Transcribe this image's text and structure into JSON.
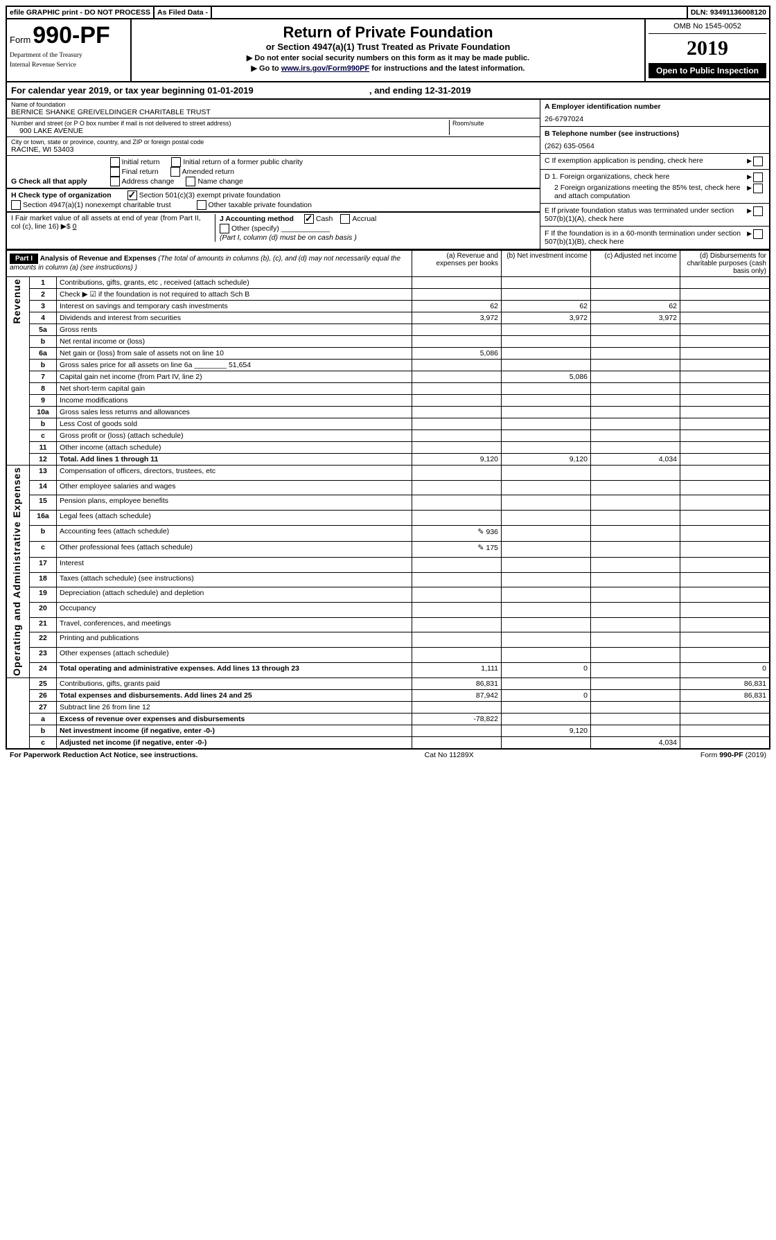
{
  "topbar": {
    "efile": "efile GRAPHIC print - DO NOT PROCESS",
    "asfiled": "As Filed Data -",
    "dln": "DLN: 93491136008120"
  },
  "header": {
    "form_prefix": "Form",
    "form_number": "990-PF",
    "dept1": "Department of the Treasury",
    "dept2": "Internal Revenue Service",
    "title": "Return of Private Foundation",
    "subtitle": "or Section 4947(a)(1) Trust Treated as Private Foundation",
    "instr1": "▶ Do not enter social security numbers on this form as it may be made public.",
    "instr2_pre": "▶ Go to ",
    "instr2_link": "www.irs.gov/Form990PF",
    "instr2_post": " for instructions and the latest information.",
    "omb": "OMB No 1545-0052",
    "year": "2019",
    "open": "Open to Public Inspection"
  },
  "calendar": {
    "text_pre": "For calendar year 2019, or tax year beginning ",
    "begin": "01-01-2019",
    "mid": ", and ending ",
    "end": "12-31-2019"
  },
  "info": {
    "name_label": "Name of foundation",
    "name": "BERNICE SHANKE GREIVELDINGER CHARITABLE TRUST",
    "addr_label": "Number and street (or P O  box number if mail is not delivered to street address)",
    "addr": "900 LAKE AVENUE",
    "room_label": "Room/suite",
    "city_label": "City or town, state or province, country, and ZIP or foreign postal code",
    "city": "RACINE, WI  53403",
    "A_label": "A Employer identification number",
    "A_value": "26-6797024",
    "B_label": "B Telephone number (see instructions)",
    "B_value": "(262) 635-0564",
    "C_label": "C If exemption application is pending, check here",
    "D1_label": "D 1. Foreign organizations, check here",
    "D2_label": "2 Foreign organizations meeting the 85% test, check here and attach computation",
    "E_label": "E  If private foundation status was terminated under section 507(b)(1)(A), check here",
    "F_label": "F  If the foundation is in a 60-month termination under section 507(b)(1)(B), check here"
  },
  "G": {
    "label": "G Check all that apply",
    "opts": [
      "Initial return",
      "Initial return of a former public charity",
      "Final return",
      "Amended return",
      "Address change",
      "Name change"
    ]
  },
  "H": {
    "label": "H Check type of organization",
    "opt1": "Section 501(c)(3) exempt private foundation",
    "opt2": "Section 4947(a)(1) nonexempt charitable trust",
    "opt3": "Other taxable private foundation"
  },
  "I": {
    "label": "I Fair market value of all assets at end of year (from Part II, col  (c), line 16) ▶$",
    "value": "0"
  },
  "J": {
    "label": "J Accounting method",
    "cash": "Cash",
    "accrual": "Accrual",
    "other": "Other (specify)",
    "note": "(Part I, column (d) must be on cash basis )"
  },
  "part1": {
    "title": "Analysis of Revenue and Expenses",
    "title_note": "(The total of amounts in columns (b), (c), and (d) may not necessarily equal the amounts in column (a) (see instructions) )",
    "col_a": "(a) Revenue and expenses per books",
    "col_b": "(b) Net investment income",
    "col_c": "(c) Adjusted net income",
    "col_d": "(d) Disbursements for charitable purposes (cash basis only)",
    "revenue_label": "Revenue",
    "expenses_label": "Operating and Administrative Expenses",
    "rows": [
      {
        "n": "1",
        "d": "Contributions, gifts, grants, etc , received (attach schedule)"
      },
      {
        "n": "2",
        "d": "Check ▶ ☑ if the foundation is not required to attach Sch  B"
      },
      {
        "n": "3",
        "d": "Interest on savings and temporary cash investments",
        "a": "62",
        "b": "62",
        "c": "62"
      },
      {
        "n": "4",
        "d": "Dividends and interest from securities",
        "a": "3,972",
        "b": "3,972",
        "c": "3,972"
      },
      {
        "n": "5a",
        "d": "Gross rents"
      },
      {
        "n": "b",
        "d": "Net rental income or (loss)"
      },
      {
        "n": "6a",
        "d": "Net gain or (loss) from sale of assets not on line 10",
        "a": "5,086"
      },
      {
        "n": "b",
        "d": "Gross sales price for all assets on line 6a ________ 51,654"
      },
      {
        "n": "7",
        "d": "Capital gain net income (from Part IV, line 2)",
        "b": "5,086"
      },
      {
        "n": "8",
        "d": "Net short-term capital gain"
      },
      {
        "n": "9",
        "d": "Income modifications"
      },
      {
        "n": "10a",
        "d": "Gross sales less returns and allowances"
      },
      {
        "n": "b",
        "d": "Less  Cost of goods sold"
      },
      {
        "n": "c",
        "d": "Gross profit or (loss) (attach schedule)"
      },
      {
        "n": "11",
        "d": "Other income (attach schedule)"
      },
      {
        "n": "12",
        "d": "Total. Add lines 1 through 11",
        "bold": true,
        "a": "9,120",
        "b": "9,120",
        "c": "4,034"
      },
      {
        "n": "13",
        "d": "Compensation of officers, directors, trustees, etc"
      },
      {
        "n": "14",
        "d": "Other employee salaries and wages"
      },
      {
        "n": "15",
        "d": "Pension plans, employee benefits"
      },
      {
        "n": "16a",
        "d": "Legal fees (attach schedule)"
      },
      {
        "n": "b",
        "d": "Accounting fees (attach schedule)",
        "icon": true,
        "a": "936"
      },
      {
        "n": "c",
        "d": "Other professional fees (attach schedule)",
        "icon": true,
        "a": "175"
      },
      {
        "n": "17",
        "d": "Interest"
      },
      {
        "n": "18",
        "d": "Taxes (attach schedule) (see instructions)"
      },
      {
        "n": "19",
        "d": "Depreciation (attach schedule) and depletion"
      },
      {
        "n": "20",
        "d": "Occupancy"
      },
      {
        "n": "21",
        "d": "Travel, conferences, and meetings"
      },
      {
        "n": "22",
        "d": "Printing and publications"
      },
      {
        "n": "23",
        "d": "Other expenses (attach schedule)"
      },
      {
        "n": "24",
        "d": "Total operating and administrative expenses. Add lines 13 through 23",
        "bold": true,
        "a": "1,111",
        "b": "0",
        "dval": "0"
      },
      {
        "n": "25",
        "d": "Contributions, gifts, grants paid",
        "a": "86,831",
        "dval": "86,831"
      },
      {
        "n": "26",
        "d": "Total expenses and disbursements. Add lines 24 and 25",
        "bold": true,
        "a": "87,942",
        "b": "0",
        "dval": "86,831"
      },
      {
        "n": "27",
        "d": "Subtract line 26 from line 12"
      },
      {
        "n": "a",
        "d": "Excess of revenue over expenses and disbursements",
        "bold": true,
        "a": "-78,822"
      },
      {
        "n": "b",
        "d": "Net investment income (if negative, enter -0-)",
        "bold": true,
        "b": "9,120"
      },
      {
        "n": "c",
        "d": "Adjusted net income (if negative, enter -0-)",
        "bold": true,
        "c": "4,034"
      }
    ]
  },
  "footer": {
    "left": "For Paperwork Reduction Act Notice, see instructions.",
    "mid": "Cat  No  11289X",
    "right": "Form 990-PF (2019)"
  }
}
